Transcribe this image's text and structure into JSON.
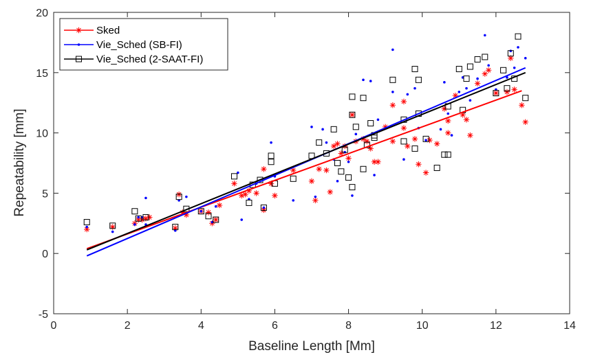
{
  "chart_data": {
    "type": "scatter",
    "xlabel": "Baseline Length [Mm]",
    "ylabel": "Repeatability [mm]",
    "xlim": [
      0,
      14
    ],
    "ylim": [
      -5,
      20
    ],
    "xticks": [
      0,
      2,
      4,
      6,
      8,
      10,
      12,
      14
    ],
    "yticks": [
      -5,
      0,
      5,
      10,
      15,
      20
    ],
    "grid": false,
    "legend_position": "top-left",
    "series": [
      {
        "name": "Sked",
        "color": "#ff0000",
        "marker": "asterisk",
        "fit": [
          [
            0.9,
            0.4
          ],
          [
            12.7,
            13.5
          ]
        ],
        "points": [
          [
            0.9,
            2.0
          ],
          [
            1.6,
            2.2
          ],
          [
            2.2,
            2.5
          ],
          [
            2.3,
            2.8
          ],
          [
            2.4,
            2.8
          ],
          [
            2.5,
            2.9
          ],
          [
            2.6,
            3.0
          ],
          [
            3.3,
            2.1
          ],
          [
            3.4,
            4.9
          ],
          [
            3.5,
            3.4
          ],
          [
            3.6,
            3.2
          ],
          [
            4.0,
            3.5
          ],
          [
            4.2,
            3.4
          ],
          [
            4.3,
            2.5
          ],
          [
            4.4,
            2.8
          ],
          [
            4.5,
            4.0
          ],
          [
            4.9,
            5.8
          ],
          [
            5.1,
            4.8
          ],
          [
            5.2,
            4.9
          ],
          [
            5.3,
            5.2
          ],
          [
            5.5,
            5.0
          ],
          [
            5.7,
            3.6
          ],
          [
            5.7,
            7.0
          ],
          [
            5.9,
            5.8
          ],
          [
            6.0,
            4.8
          ],
          [
            6.5,
            6.9
          ],
          [
            7.0,
            6.0
          ],
          [
            7.1,
            4.4
          ],
          [
            7.2,
            7.0
          ],
          [
            7.4,
            6.9
          ],
          [
            7.5,
            5.1
          ],
          [
            7.6,
            8.9
          ],
          [
            7.7,
            9.1
          ],
          [
            7.8,
            8.3
          ],
          [
            7.9,
            8.9
          ],
          [
            8.0,
            7.9
          ],
          [
            8.1,
            11.5
          ],
          [
            8.2,
            9.3
          ],
          [
            8.4,
            9.5
          ],
          [
            8.5,
            9.3
          ],
          [
            8.6,
            8.7
          ],
          [
            8.7,
            7.6
          ],
          [
            8.8,
            7.6
          ],
          [
            9.0,
            10.5
          ],
          [
            9.2,
            9.3
          ],
          [
            9.2,
            12.3
          ],
          [
            9.5,
            10.4
          ],
          [
            9.5,
            12.6
          ],
          [
            9.6,
            8.9
          ],
          [
            9.8,
            9.5
          ],
          [
            9.9,
            7.4
          ],
          [
            10.1,
            6.7
          ],
          [
            10.2,
            9.4
          ],
          [
            10.4,
            9.1
          ],
          [
            10.6,
            12.0
          ],
          [
            10.7,
            10.0
          ],
          [
            10.7,
            11.0
          ],
          [
            10.9,
            13.1
          ],
          [
            11.1,
            11.5
          ],
          [
            11.2,
            11.1
          ],
          [
            11.3,
            9.8
          ],
          [
            11.5,
            14.1
          ],
          [
            11.7,
            14.9
          ],
          [
            11.8,
            15.2
          ],
          [
            12.0,
            13.3
          ],
          [
            12.3,
            13.4
          ],
          [
            12.4,
            16.2
          ],
          [
            12.5,
            13.6
          ],
          [
            12.7,
            12.3
          ],
          [
            12.8,
            10.9
          ]
        ]
      },
      {
        "name": "Vie_Sched (SB-FI)",
        "color": "#0000ff",
        "marker": "dot",
        "fit": [
          [
            0.9,
            -0.2
          ],
          [
            12.8,
            15.4
          ]
        ],
        "points": [
          [
            0.9,
            2.2
          ],
          [
            1.6,
            1.8
          ],
          [
            2.2,
            2.4
          ],
          [
            2.3,
            3.0
          ],
          [
            2.4,
            3.0
          ],
          [
            2.5,
            2.4
          ],
          [
            2.5,
            4.6
          ],
          [
            3.3,
            1.9
          ],
          [
            3.4,
            4.4
          ],
          [
            3.6,
            4.7
          ],
          [
            4.0,
            3.5
          ],
          [
            4.3,
            2.6
          ],
          [
            4.4,
            3.9
          ],
          [
            5.0,
            6.7
          ],
          [
            5.1,
            2.8
          ],
          [
            5.3,
            4.5
          ],
          [
            5.5,
            5.8
          ],
          [
            5.7,
            3.8
          ],
          [
            5.9,
            9.2
          ],
          [
            6.0,
            6.4
          ],
          [
            6.5,
            4.4
          ],
          [
            7.0,
            10.5
          ],
          [
            7.1,
            4.7
          ],
          [
            7.3,
            10.3
          ],
          [
            7.4,
            9.2
          ],
          [
            7.6,
            7.8
          ],
          [
            7.7,
            6.0
          ],
          [
            7.9,
            8.4
          ],
          [
            8.0,
            7.6
          ],
          [
            8.1,
            4.8
          ],
          [
            8.2,
            9.9
          ],
          [
            8.4,
            14.4
          ],
          [
            8.6,
            14.3
          ],
          [
            8.7,
            6.5
          ],
          [
            8.8,
            11.1
          ],
          [
            9.2,
            13.4
          ],
          [
            9.2,
            16.9
          ],
          [
            9.5,
            7.8
          ],
          [
            9.6,
            13.2
          ],
          [
            9.8,
            13.7
          ],
          [
            9.9,
            10.4
          ],
          [
            10.1,
            9.4
          ],
          [
            10.5,
            10.3
          ],
          [
            10.6,
            14.2
          ],
          [
            10.7,
            11.6
          ],
          [
            10.8,
            9.8
          ],
          [
            11.0,
            13.4
          ],
          [
            11.2,
            13.7
          ],
          [
            11.1,
            14.6
          ],
          [
            11.3,
            12.7
          ],
          [
            11.5,
            14.5
          ],
          [
            11.7,
            18.1
          ],
          [
            11.8,
            15.6
          ],
          [
            12.0,
            13.6
          ],
          [
            12.3,
            14.6
          ],
          [
            12.4,
            16.8
          ],
          [
            12.5,
            15.4
          ],
          [
            12.6,
            17.1
          ],
          [
            12.8,
            16.2
          ]
        ]
      },
      {
        "name": "Vie_Sched (2-SAAT-FI)",
        "color": "#000000",
        "marker": "square",
        "fit": [
          [
            0.9,
            0.3
          ],
          [
            12.8,
            15.0
          ]
        ],
        "points": [
          [
            0.9,
            2.6
          ],
          [
            1.6,
            2.3
          ],
          [
            2.2,
            3.5
          ],
          [
            2.3,
            2.9
          ],
          [
            2.5,
            3.0
          ],
          [
            3.3,
            2.2
          ],
          [
            3.4,
            4.7
          ],
          [
            3.6,
            3.7
          ],
          [
            4.0,
            3.5
          ],
          [
            4.2,
            3.1
          ],
          [
            4.4,
            2.8
          ],
          [
            4.9,
            6.4
          ],
          [
            5.3,
            4.2
          ],
          [
            5.4,
            5.7
          ],
          [
            5.6,
            6.1
          ],
          [
            5.7,
            3.8
          ],
          [
            5.9,
            8.1
          ],
          [
            5.9,
            7.6
          ],
          [
            6.0,
            5.8
          ],
          [
            6.5,
            6.2
          ],
          [
            7.0,
            8.1
          ],
          [
            7.2,
            9.2
          ],
          [
            7.4,
            8.3
          ],
          [
            7.6,
            10.3
          ],
          [
            7.7,
            7.5
          ],
          [
            7.8,
            6.8
          ],
          [
            7.9,
            8.6
          ],
          [
            8.0,
            6.3
          ],
          [
            8.1,
            11.5
          ],
          [
            8.1,
            5.5
          ],
          [
            8.1,
            13.0
          ],
          [
            8.2,
            10.5
          ],
          [
            8.4,
            12.9
          ],
          [
            8.4,
            7.0
          ],
          [
            8.5,
            9.0
          ],
          [
            8.6,
            10.8
          ],
          [
            8.7,
            9.6
          ],
          [
            8.7,
            9.8
          ],
          [
            9.2,
            14.4
          ],
          [
            9.5,
            11.1
          ],
          [
            9.5,
            9.3
          ],
          [
            9.8,
            8.7
          ],
          [
            9.8,
            15.3
          ],
          [
            9.9,
            11.6
          ],
          [
            9.9,
            14.4
          ],
          [
            10.1,
            9.5
          ],
          [
            10.4,
            7.1
          ],
          [
            10.6,
            8.2
          ],
          [
            10.7,
            8.2
          ],
          [
            10.7,
            12.2
          ],
          [
            11.0,
            15.3
          ],
          [
            11.1,
            11.9
          ],
          [
            11.2,
            14.5
          ],
          [
            11.3,
            15.5
          ],
          [
            11.5,
            16.1
          ],
          [
            11.7,
            16.3
          ],
          [
            12.0,
            13.3
          ],
          [
            12.2,
            15.2
          ],
          [
            12.3,
            13.7
          ],
          [
            12.4,
            16.6
          ],
          [
            12.5,
            14.5
          ],
          [
            12.6,
            18.0
          ],
          [
            12.8,
            12.9
          ]
        ]
      }
    ]
  }
}
